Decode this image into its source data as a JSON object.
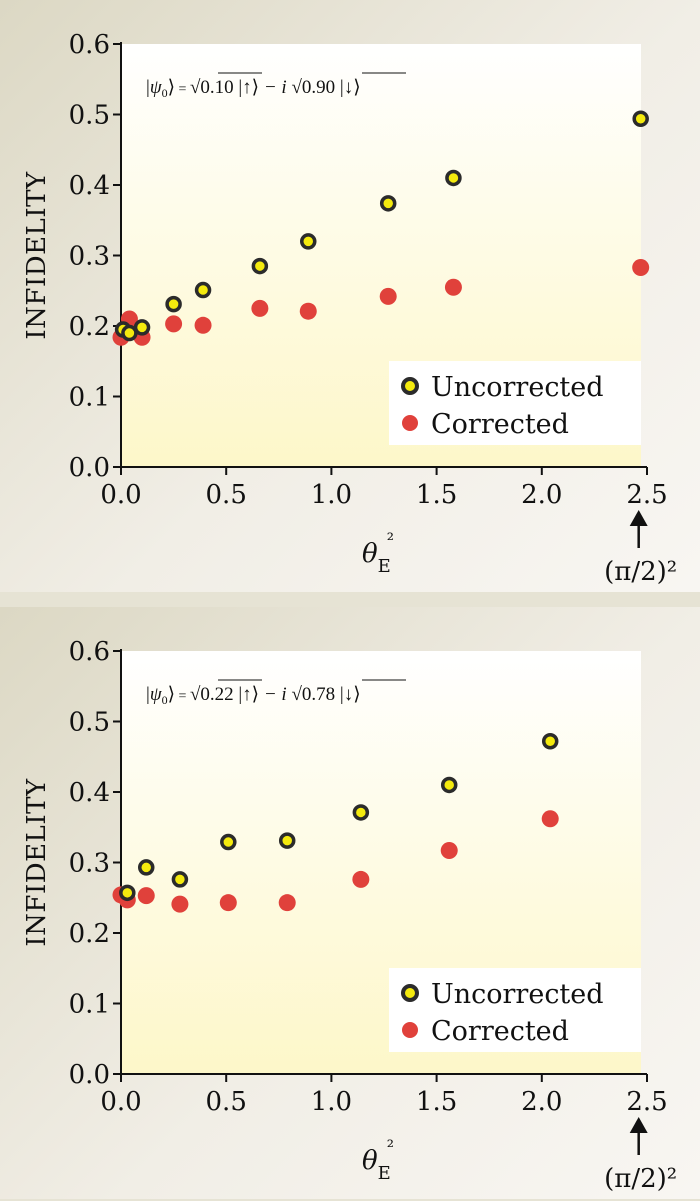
{
  "chart_data": [
    {
      "type": "scatter",
      "formula": {
        "lhs": "|ψ0⟩",
        "eq": "=",
        "a": "0.10",
        "b": "0.90",
        "up": "|↑⟩",
        "minus_i": "− i",
        "down": "|↓⟩"
      },
      "xlabel": "θE²",
      "ylabel": "INFIDELITY",
      "xlim": [
        0,
        2.5
      ],
      "ylim": [
        0,
        0.6
      ],
      "x_ticks": [
        0.0,
        0.5,
        1.0,
        1.5,
        2.0,
        2.5
      ],
      "x_tick_labels": [
        "0.0",
        "0.5",
        "1.0",
        "1.5",
        "2.0",
        "2.5"
      ],
      "y_ticks": [
        0.0,
        0.1,
        0.2,
        0.3,
        0.4,
        0.5,
        0.6
      ],
      "y_tick_labels": [
        "0.0",
        "0.1",
        "0.2",
        "0.3",
        "0.4",
        "0.5",
        "0.6"
      ],
      "arrow_annotation": {
        "x": 2.47,
        "text": "(π/2)²"
      },
      "legend": [
        "Uncorrected",
        "Corrected"
      ],
      "series": [
        {
          "name": "Uncorrected",
          "color": "#f4ea0e",
          "points": [
            [
              0.01,
              0.195
            ],
            [
              0.04,
              0.19
            ],
            [
              0.1,
              0.198
            ],
            [
              0.25,
              0.231
            ],
            [
              0.39,
              0.251
            ],
            [
              0.66,
              0.285
            ],
            [
              0.89,
              0.32
            ],
            [
              1.27,
              0.374
            ],
            [
              1.58,
              0.41
            ],
            [
              2.47,
              0.494
            ]
          ]
        },
        {
          "name": "Corrected",
          "color": "#e0413b",
          "points": [
            [
              0.0,
              0.184
            ],
            [
              0.04,
              0.21
            ],
            [
              0.1,
              0.184
            ],
            [
              0.25,
              0.203
            ],
            [
              0.39,
              0.201
            ],
            [
              0.66,
              0.225
            ],
            [
              0.89,
              0.221
            ],
            [
              1.27,
              0.242
            ],
            [
              1.58,
              0.255
            ],
            [
              2.47,
              0.283
            ]
          ]
        }
      ]
    },
    {
      "type": "scatter",
      "formula": {
        "lhs": "|ψ0⟩",
        "eq": "=",
        "a": "0.22",
        "b": "0.78",
        "up": "|↑⟩",
        "minus_i": "− i",
        "down": "|↓⟩"
      },
      "xlabel": "θE²",
      "ylabel": "INFIDELITY",
      "xlim": [
        0,
        2.5
      ],
      "ylim": [
        0,
        0.6
      ],
      "x_ticks": [
        0.0,
        0.5,
        1.0,
        1.5,
        2.0,
        2.5
      ],
      "x_tick_labels": [
        "0.0",
        "0.5",
        "1.0",
        "1.5",
        "2.0",
        "2.5"
      ],
      "y_ticks": [
        0.0,
        0.1,
        0.2,
        0.3,
        0.4,
        0.5,
        0.6
      ],
      "y_tick_labels": [
        "0.0",
        "0.1",
        "0.2",
        "0.3",
        "0.4",
        "0.5",
        "0.6"
      ],
      "arrow_annotation": {
        "x": 2.47,
        "text": "(π/2)²"
      },
      "legend": [
        "Uncorrected",
        "Corrected"
      ],
      "series": [
        {
          "name": "Uncorrected",
          "color": "#f4ea0e",
          "points": [
            [
              0.03,
              0.257
            ],
            [
              0.12,
              0.293
            ],
            [
              0.28,
              0.276
            ],
            [
              0.51,
              0.329
            ],
            [
              0.79,
              0.331
            ],
            [
              1.14,
              0.371
            ],
            [
              1.56,
              0.41
            ],
            [
              2.04,
              0.472
            ]
          ]
        },
        {
          "name": "Corrected",
          "color": "#e0413b",
          "points": [
            [
              0.0,
              0.254
            ],
            [
              0.03,
              0.247
            ],
            [
              0.12,
              0.253
            ],
            [
              0.28,
              0.241
            ],
            [
              0.51,
              0.243
            ],
            [
              0.79,
              0.243
            ],
            [
              1.14,
              0.276
            ],
            [
              1.56,
              0.317
            ],
            [
              2.04,
              0.362
            ]
          ]
        }
      ]
    }
  ]
}
